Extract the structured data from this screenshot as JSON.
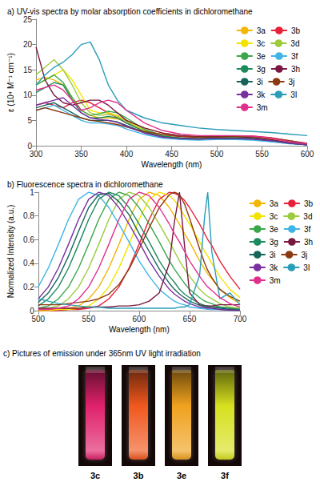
{
  "chart_data": [
    {
      "type": "line",
      "title": "a) UV-vis spectra by molar absorption coefficients in dichloromethane",
      "x_label": "Wavelength (nm)",
      "y_label": "ε (10⁴ M⁻¹ cm⁻¹)",
      "x": [
        300,
        310,
        320,
        330,
        340,
        350,
        360,
        370,
        380,
        390,
        400,
        420,
        440,
        460,
        480,
        500,
        520,
        540,
        560,
        580,
        600
      ],
      "xlim": [
        300,
        600
      ],
      "xticks": [
        300,
        350,
        400,
        450,
        500,
        550,
        600
      ],
      "ylim": [
        0,
        25
      ],
      "yticks": [
        0,
        5,
        10,
        15,
        20,
        25
      ],
      "grid": false,
      "legend": "top-right",
      "series": [
        {
          "name": "3a",
          "color": "#f2b705",
          "values": [
            13,
            13.5,
            13,
            12,
            9.5,
            7,
            6,
            5.5,
            5.5,
            5.3,
            5,
            3.5,
            2.5,
            2,
            1.8,
            1.8,
            1.8,
            1.7,
            1.3,
            0.7,
            0.3
          ]
        },
        {
          "name": "3b",
          "color": "#e8203a",
          "values": [
            8,
            8.5,
            8,
            7.5,
            8.5,
            9,
            8.5,
            7.5,
            6.5,
            5.5,
            4.5,
            3,
            2.2,
            1.8,
            1.7,
            1.8,
            1.9,
            1.9,
            1.6,
            1,
            0.4
          ]
        },
        {
          "name": "3c",
          "color": "#f4e300",
          "values": [
            12,
            13,
            14,
            15,
            13,
            10,
            7,
            6.5,
            6.5,
            6,
            5,
            3,
            2,
            1.5,
            1.4,
            1.5,
            1.6,
            1.5,
            1.1,
            0.5,
            0.2
          ]
        },
        {
          "name": "3d",
          "color": "#9ccc3c",
          "values": [
            14,
            15.5,
            17,
            15,
            12,
            8.5,
            6.5,
            6,
            6.2,
            5.8,
            4.8,
            2.8,
            1.8,
            1.4,
            1.3,
            1.4,
            1.5,
            1.4,
            1,
            0.5,
            0.2
          ]
        },
        {
          "name": "3e",
          "color": "#3aa84a",
          "values": [
            12,
            13,
            14,
            12.5,
            9.5,
            7,
            6,
            6.3,
            6.8,
            6.5,
            5.5,
            3.2,
            2,
            1.5,
            1.4,
            1.5,
            1.6,
            1.5,
            1.1,
            0.5,
            0.2
          ]
        },
        {
          "name": "3f",
          "color": "#3fb4e6",
          "values": [
            7,
            7.5,
            8,
            7,
            6,
            5,
            4.5,
            4.5,
            4.3,
            4,
            3.3,
            2.2,
            1.5,
            1.2,
            1.1,
            1.2,
            1.2,
            1.1,
            0.8,
            0.4,
            0.2
          ]
        },
        {
          "name": "3g",
          "color": "#1d8a5c",
          "values": [
            10.5,
            11.5,
            12.5,
            12,
            9,
            6.5,
            5.5,
            5.5,
            5.8,
            5.5,
            4.5,
            2.8,
            1.8,
            1.4,
            1.3,
            1.4,
            1.4,
            1.3,
            1,
            0.5,
            0.2
          ]
        },
        {
          "name": "3h",
          "color": "#7a1740",
          "values": [
            19.5,
            13,
            10,
            8.5,
            8,
            8.5,
            9,
            9,
            8,
            6.5,
            5,
            3.5,
            2.5,
            2,
            1.8,
            1.8,
            1.8,
            1.6,
            1.2,
            0.6,
            0.3
          ]
        },
        {
          "name": "3i",
          "color": "#17655a",
          "values": [
            7.5,
            8,
            8.5,
            7.5,
            6.5,
            5.5,
            5,
            5,
            5,
            4.7,
            4,
            2.6,
            1.8,
            1.5,
            1.4,
            1.5,
            1.5,
            1.4,
            1,
            0.5,
            0.2
          ]
        },
        {
          "name": "3j",
          "color": "#8b3a12",
          "values": [
            7,
            7.5,
            7,
            6.5,
            6,
            5.5,
            5,
            4.8,
            4.5,
            4.2,
            3.7,
            2.8,
            2.2,
            1.8,
            1.7,
            1.7,
            1.8,
            1.8,
            1.5,
            1,
            0.5
          ]
        },
        {
          "name": "3k",
          "color": "#7a2fa0",
          "values": [
            8,
            8.5,
            9,
            9.5,
            8,
            6.5,
            5.5,
            5.2,
            5,
            4.6,
            3.8,
            2.5,
            1.7,
            1.4,
            1.3,
            1.4,
            1.4,
            1.3,
            1,
            0.5,
            0.2
          ]
        },
        {
          "name": "3l",
          "color": "#2a9db8",
          "values": [
            12,
            14,
            15.5,
            16.5,
            18,
            20,
            20.5,
            17,
            12,
            9,
            7,
            5.5,
            4.5,
            4,
            3.5,
            3.2,
            3,
            2.8,
            2.6,
            2.3,
            2
          ]
        },
        {
          "name": "3m",
          "color": "#e0308c",
          "values": [
            11,
            11.5,
            12,
            11,
            9,
            7,
            7.5,
            8.5,
            9,
            8.5,
            7,
            4.5,
            3,
            2.3,
            2,
            2,
            2,
            1.9,
            1.5,
            0.8,
            0.4
          ]
        }
      ]
    },
    {
      "type": "line",
      "title": "b) Fluorescence spectra in dichloromethane",
      "x_label": "Wavelength (nm)",
      "y_label": "Normalized Intensity (a.u.)",
      "x": [
        500,
        510,
        520,
        530,
        540,
        550,
        560,
        570,
        580,
        590,
        600,
        610,
        620,
        630,
        635,
        640,
        645,
        650,
        660,
        665,
        668,
        672,
        680,
        690,
        700
      ],
      "xlim": [
        500,
        700
      ],
      "xticks": [
        500,
        550,
        600,
        650,
        700
      ],
      "ylim": [
        0,
        1
      ],
      "yticks": [
        0,
        0.2,
        0.4,
        0.6,
        0.8,
        1
      ],
      "grid": false,
      "legend": "right",
      "series": [
        {
          "name": "3a",
          "color": "#f2b705",
          "values": [
            0,
            0.01,
            0.01,
            0.02,
            0.04,
            0.1,
            0.2,
            0.36,
            0.56,
            0.77,
            0.94,
            1,
            0.97,
            0.87,
            0.8,
            0.73,
            0.65,
            0.58,
            0.42,
            0.35,
            0.31,
            0.27,
            0.18,
            0.11,
            0.06
          ]
        },
        {
          "name": "3b",
          "color": "#e8203a",
          "values": [
            0,
            0,
            0,
            0.01,
            0.01,
            0.02,
            0.04,
            0.1,
            0.2,
            0.36,
            0.56,
            0.77,
            0.94,
            1,
            0.99,
            0.97,
            0.93,
            0.87,
            0.73,
            0.65,
            0.6,
            0.55,
            0.42,
            0.29,
            0.18
          ]
        },
        {
          "name": "3c",
          "color": "#f4e300",
          "values": [
            0,
            0,
            0.01,
            0.01,
            0.02,
            0.04,
            0.1,
            0.2,
            0.36,
            0.56,
            0.77,
            0.94,
            1,
            0.97,
            0.93,
            0.87,
            0.8,
            0.73,
            0.58,
            0.5,
            0.46,
            0.4,
            0.29,
            0.18,
            0.11
          ]
        },
        {
          "name": "3d",
          "color": "#9ccc3c",
          "values": [
            0.01,
            0.02,
            0.04,
            0.1,
            0.2,
            0.36,
            0.56,
            0.77,
            0.94,
            1,
            0.97,
            0.87,
            0.73,
            0.58,
            0.5,
            0.42,
            0.35,
            0.29,
            0.18,
            0.14,
            0.12,
            0.1,
            0.06,
            0.03,
            0.02
          ]
        },
        {
          "name": "3e",
          "color": "#3aa84a",
          "values": [
            0.02,
            0.04,
            0.1,
            0.2,
            0.36,
            0.56,
            0.77,
            0.94,
            1,
            0.97,
            0.87,
            0.73,
            0.58,
            0.42,
            0.35,
            0.29,
            0.23,
            0.18,
            0.11,
            0.08,
            0.07,
            0.06,
            0.03,
            0.02,
            0.01
          ]
        },
        {
          "name": "3f",
          "color": "#3fb4e6",
          "values": [
            0.2,
            0.36,
            0.56,
            0.77,
            0.94,
            1,
            0.97,
            0.87,
            0.73,
            0.58,
            0.42,
            0.29,
            0.18,
            0.11,
            0.08,
            0.06,
            0.05,
            0.03,
            0.02,
            0.015,
            0.012,
            0.01,
            0.01,
            0.005,
            0
          ]
        },
        {
          "name": "3g",
          "color": "#1d8a5c",
          "values": [
            0.04,
            0.1,
            0.2,
            0.36,
            0.56,
            0.77,
            0.94,
            1,
            0.97,
            0.87,
            0.73,
            0.58,
            0.42,
            0.29,
            0.24,
            0.18,
            0.14,
            0.11,
            0.06,
            0.045,
            0.04,
            0.035,
            0.03,
            0.02,
            0.01
          ]
        },
        {
          "name": "3h",
          "color": "#7a1740",
          "values": [
            0.02,
            0.02,
            0.02,
            0.02,
            0.02,
            0.03,
            0.03,
            0.03,
            0.04,
            0.04,
            0.05,
            0.08,
            0.15,
            0.4,
            0.75,
            1,
            0.55,
            0.15,
            0.05,
            0.04,
            0.04,
            0.04,
            0.05,
            0.05,
            0.05
          ]
        },
        {
          "name": "3i",
          "color": "#17655a",
          "values": [
            0.07,
            0.15,
            0.28,
            0.46,
            0.67,
            0.87,
            0.98,
            0.99,
            0.92,
            0.81,
            0.65,
            0.5,
            0.35,
            0.23,
            0.18,
            0.14,
            0.11,
            0.08,
            0.045,
            0.035,
            0.03,
            0.025,
            0.02,
            0.01,
            0.005
          ]
        },
        {
          "name": "3j",
          "color": "#8b3a12",
          "values": [
            0.05,
            0.05,
            0.05,
            0.06,
            0.07,
            0.08,
            0.1,
            0.14,
            0.22,
            0.35,
            0.52,
            0.7,
            0.87,
            0.98,
            1,
            0.98,
            0.9,
            0.78,
            0.52,
            0.4,
            0.34,
            0.28,
            0.18,
            0.12,
            0.08
          ]
        },
        {
          "name": "3k",
          "color": "#7a2fa0",
          "values": [
            0.1,
            0.2,
            0.36,
            0.56,
            0.77,
            0.94,
            1,
            0.97,
            0.87,
            0.73,
            0.58,
            0.42,
            0.29,
            0.18,
            0.14,
            0.11,
            0.08,
            0.06,
            0.03,
            0.025,
            0.02,
            0.02,
            0.01,
            0.005,
            0
          ]
        },
        {
          "name": "3l",
          "color": "#2a9db8",
          "values": [
            0.1,
            0.08,
            0.06,
            0.05,
            0.04,
            0.03,
            0.03,
            0.02,
            0.02,
            0.02,
            0.02,
            0.02,
            0.02,
            0.02,
            0.02,
            0.03,
            0.03,
            0.05,
            0.3,
            0.8,
            1,
            0.5,
            0.1,
            0.15,
            0.05
          ]
        },
        {
          "name": "3m",
          "color": "#e0308c",
          "values": [
            0.01,
            0.01,
            0.02,
            0.04,
            0.1,
            0.2,
            0.36,
            0.56,
            0.77,
            0.94,
            1,
            0.97,
            0.87,
            0.73,
            0.65,
            0.58,
            0.5,
            0.42,
            0.29,
            0.23,
            0.2,
            0.17,
            0.11,
            0.06,
            0.03
          ]
        }
      ]
    }
  ],
  "pictures": {
    "title": "c) Pictures of emission under 365nm UV light irradiation",
    "samples": [
      {
        "label": "3c",
        "color": "#e0216b"
      },
      {
        "label": "3b",
        "color": "#f0581e"
      },
      {
        "label": "3e",
        "color": "#f0a21e"
      },
      {
        "label": "3f",
        "color": "#d6e01e"
      }
    ]
  }
}
